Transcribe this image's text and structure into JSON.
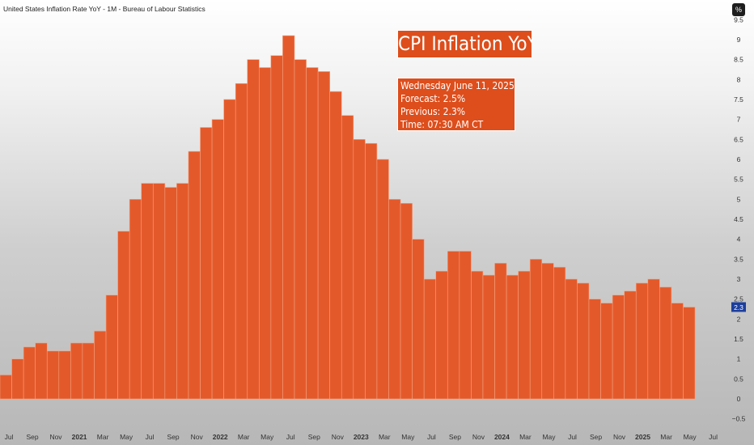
{
  "header": {
    "title": "United States Inflation Rate YoY - 1M - Bureau of Labour Statistics",
    "unit_button": "%"
  },
  "annotation": {
    "title": "CPI Inflation YoY",
    "lines": [
      "Wednesday June 11, 2025",
      "Forecast: 2.5%",
      "Previous: 2.3%",
      "Time: 07:30 AM CT"
    ]
  },
  "colors": {
    "bar": "#e4592a",
    "bar_edge": "#f4a27f",
    "annotation_bg": "#dd4e1c",
    "last_value_badge": "#1d3f9c"
  },
  "chart_data": {
    "type": "bar",
    "x_start": "2020-06",
    "values": [
      0.6,
      1.0,
      1.3,
      1.4,
      1.2,
      1.2,
      1.4,
      1.4,
      1.7,
      2.6,
      4.2,
      5.0,
      5.4,
      5.4,
      5.3,
      5.4,
      6.2,
      6.8,
      7.0,
      7.5,
      7.9,
      8.5,
      8.3,
      8.6,
      9.1,
      8.5,
      8.3,
      8.2,
      7.7,
      7.1,
      6.5,
      6.4,
      6.0,
      5.0,
      4.9,
      4.0,
      3.0,
      3.2,
      3.7,
      3.7,
      3.2,
      3.1,
      3.4,
      3.1,
      3.2,
      3.5,
      3.4,
      3.3,
      3.0,
      2.9,
      2.5,
      2.4,
      2.6,
      2.7,
      2.9,
      3.0,
      2.8,
      2.4,
      2.3
    ],
    "y_axis": {
      "min": -0.5,
      "max": 9.5,
      "ticks": [
        "9.5",
        "9",
        "8.5",
        "8",
        "7.5",
        "7",
        "6.5",
        "6",
        "5.5",
        "5",
        "4.5",
        "4",
        "3.5",
        "3",
        "2.5",
        "2",
        "1.5",
        "1",
        "0.5",
        "0",
        "−0.5"
      ],
      "position": "right"
    },
    "x_axis": {
      "labels": [
        "Jul",
        "Sep",
        "Nov",
        "2021",
        "Mar",
        "May",
        "Jul",
        "Sep",
        "Nov",
        "2022",
        "Mar",
        "May",
        "Jul",
        "Sep",
        "Nov",
        "2023",
        "Mar",
        "May",
        "Jul",
        "Sep",
        "Nov",
        "2024",
        "Mar",
        "May",
        "Jul",
        "Sep",
        "Nov",
        "2025",
        "Mar",
        "May",
        "Jul"
      ]
    },
    "last_value_label": "2.3",
    "grid": false,
    "legend": "none"
  }
}
